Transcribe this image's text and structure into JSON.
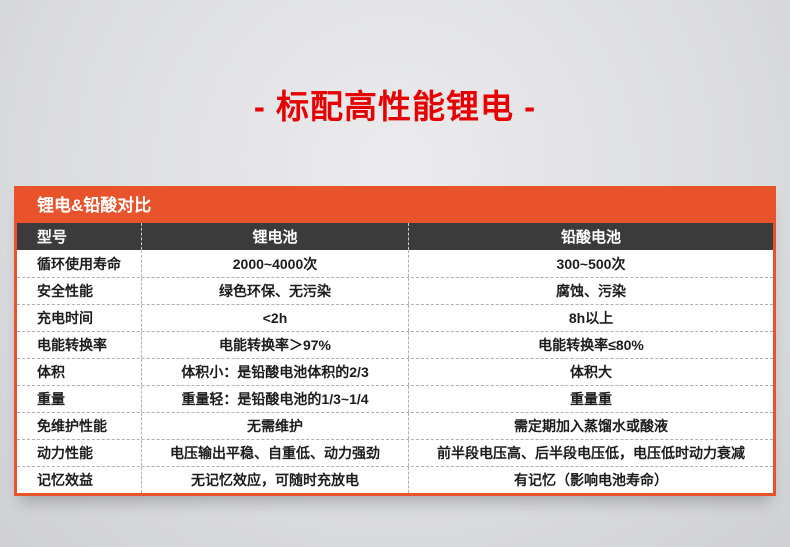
{
  "page": {
    "title": "- 标配高性能锂电 -"
  },
  "colors": {
    "title_red": "#e60000",
    "accent_orange": "#e9532b",
    "header_dark": "#3b3b3b",
    "body_background": "#dddee0"
  },
  "table": {
    "banner": "锂电&铅酸对比",
    "columns": {
      "label": "型号",
      "lithium": "锂电池",
      "lead_acid": "铅酸电池"
    },
    "rows": [
      {
        "label": "循环使用寿命",
        "lithium": "2000~4000次",
        "lead_acid": "300~500次"
      },
      {
        "label": "安全性能",
        "lithium": "绿色环保、无污染",
        "lead_acid": "腐蚀、污染"
      },
      {
        "label": "充电时间",
        "lithium": "<2h",
        "lead_acid": "8h以上"
      },
      {
        "label": "电能转换率",
        "lithium": "电能转换率＞97%",
        "lead_acid": "电能转换率≤80%"
      },
      {
        "label": "体积",
        "lithium": "体积小：是铅酸电池体积的2/3",
        "lead_acid": "体积大"
      },
      {
        "label": "重量",
        "lithium": "重量轻：是铅酸电池的1/3~1/4",
        "lead_acid": "重量重"
      },
      {
        "label": "免维护性能",
        "lithium": "无需维护",
        "lead_acid": "需定期加入蒸馏水或酸液"
      },
      {
        "label": "动力性能",
        "lithium": "电压输出平稳、自重低、动力强劲",
        "lead_acid": "前半段电压高、后半段电压低，电压低时动力衰减"
      },
      {
        "label": "记忆效益",
        "lithium": "无记忆效应，可随时充放电",
        "lead_acid": "有记忆（影响电池寿命）"
      }
    ]
  }
}
